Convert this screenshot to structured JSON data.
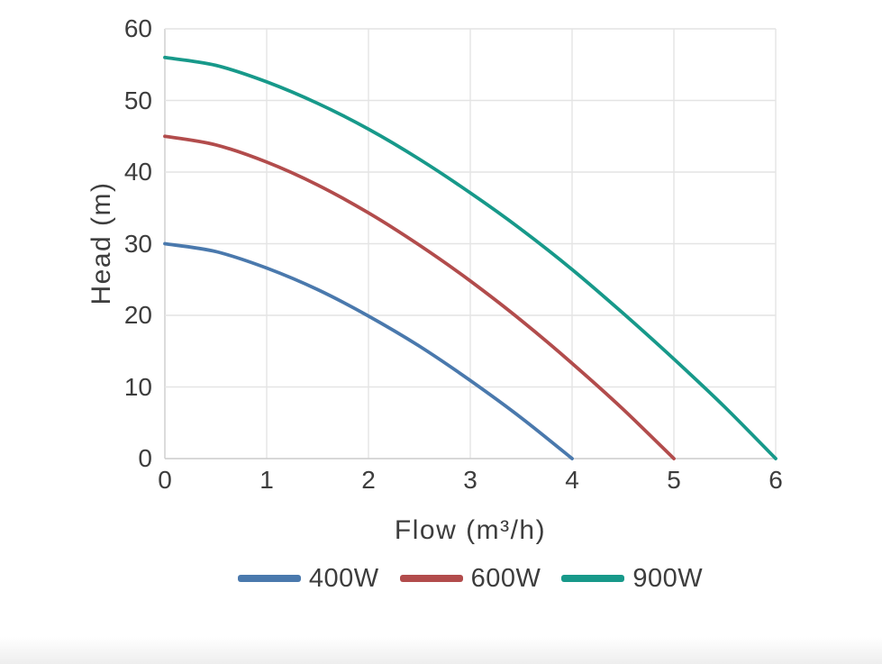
{
  "chart_data": {
    "type": "line",
    "title": "",
    "xlabel": "Flow (m³/h)",
    "ylabel": "Head (m)",
    "xlim": [
      0,
      6
    ],
    "ylim": [
      0,
      60
    ],
    "x_ticks": [
      0,
      1,
      2,
      3,
      4,
      5,
      6
    ],
    "y_ticks": [
      0,
      10,
      20,
      30,
      40,
      50,
      60
    ],
    "grid": true,
    "legend_position": "bottom-center",
    "colors": {
      "grid": "#e4e4e4",
      "spine": "#cccccc",
      "text": "#3d3d3d",
      "background": "#ffffff",
      "bottom_fade": "#eeeeee"
    },
    "series": [
      {
        "name": "400W",
        "color": "#4A79AD",
        "points": [
          [
            0,
            30
          ],
          [
            0.5,
            28.9
          ],
          [
            1,
            26.6
          ],
          [
            1.5,
            23.6
          ],
          [
            2,
            19.9
          ],
          [
            2.5,
            15.7
          ],
          [
            3,
            10.9
          ],
          [
            3.5,
            5.7
          ],
          [
            4,
            0
          ]
        ]
      },
      {
        "name": "600W",
        "color": "#B24C4C",
        "points": [
          [
            0,
            45
          ],
          [
            0.5,
            43.8
          ],
          [
            1,
            41.4
          ],
          [
            1.5,
            38.2
          ],
          [
            2,
            34.3
          ],
          [
            2.5,
            29.8
          ],
          [
            3,
            24.8
          ],
          [
            3.5,
            19.3
          ],
          [
            4,
            13.3
          ],
          [
            4.5,
            6.9
          ],
          [
            5,
            0
          ]
        ]
      },
      {
        "name": "900W",
        "color": "#17998A",
        "points": [
          [
            0,
            56
          ],
          [
            0.5,
            54.9
          ],
          [
            1,
            52.6
          ],
          [
            1.5,
            49.6
          ],
          [
            2,
            46
          ],
          [
            2.5,
            41.8
          ],
          [
            3,
            37.1
          ],
          [
            3.5,
            32
          ],
          [
            4,
            26.4
          ],
          [
            4.5,
            20.3
          ],
          [
            5,
            13.9
          ],
          [
            5.5,
            7.2
          ],
          [
            6,
            0
          ]
        ]
      }
    ]
  }
}
